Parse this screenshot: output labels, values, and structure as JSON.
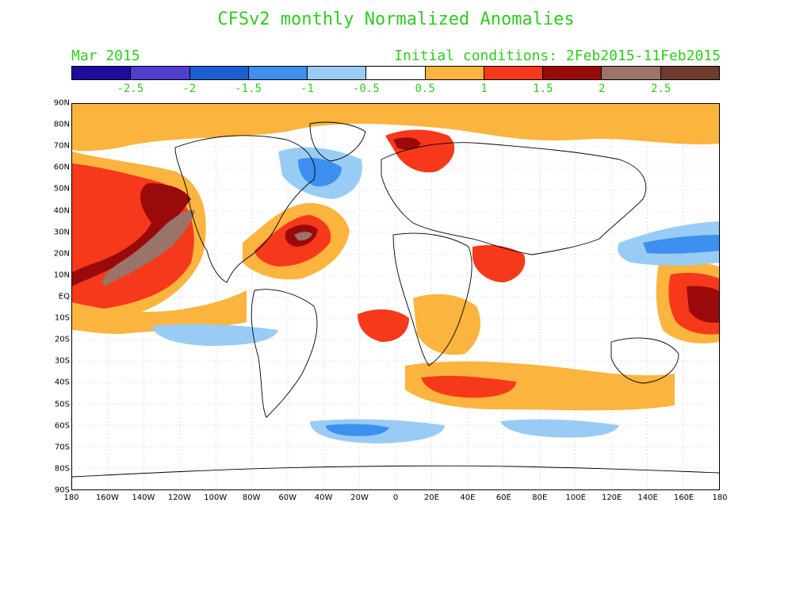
{
  "title": "CFSv2 monthly Normalized Anomalies",
  "month": "Mar 2015",
  "initial_conditions": "Initial conditions: 2Feb2015-11Feb2015",
  "colorbar": {
    "colors": [
      "#1c0d9c",
      "#4f3fcf",
      "#1a5fcf",
      "#3d8ff0",
      "#99ccf5",
      "#ffffff",
      "#fbb43e",
      "#f6391a",
      "#9a0a0a",
      "#9a7468",
      "#6e3b2e"
    ],
    "labels": [
      "-2.5",
      "-2",
      "-1.5",
      "-1",
      "-0.5",
      "0.5",
      "1",
      "1.5",
      "2",
      "2.5"
    ]
  },
  "lat_labels": [
    "90N",
    "80N",
    "70N",
    "60N",
    "50N",
    "40N",
    "30N",
    "20N",
    "10N",
    "EQ",
    "10S",
    "20S",
    "30S",
    "40S",
    "50S",
    "60S",
    "70S",
    "80S",
    "90S"
  ],
  "lon_labels": [
    "180",
    "160W",
    "140W",
    "120W",
    "100W",
    "80W",
    "60W",
    "40W",
    "20W",
    "0",
    "20E",
    "40E",
    "60E",
    "80E",
    "100E",
    "120E",
    "140E",
    "160E",
    "180"
  ]
}
